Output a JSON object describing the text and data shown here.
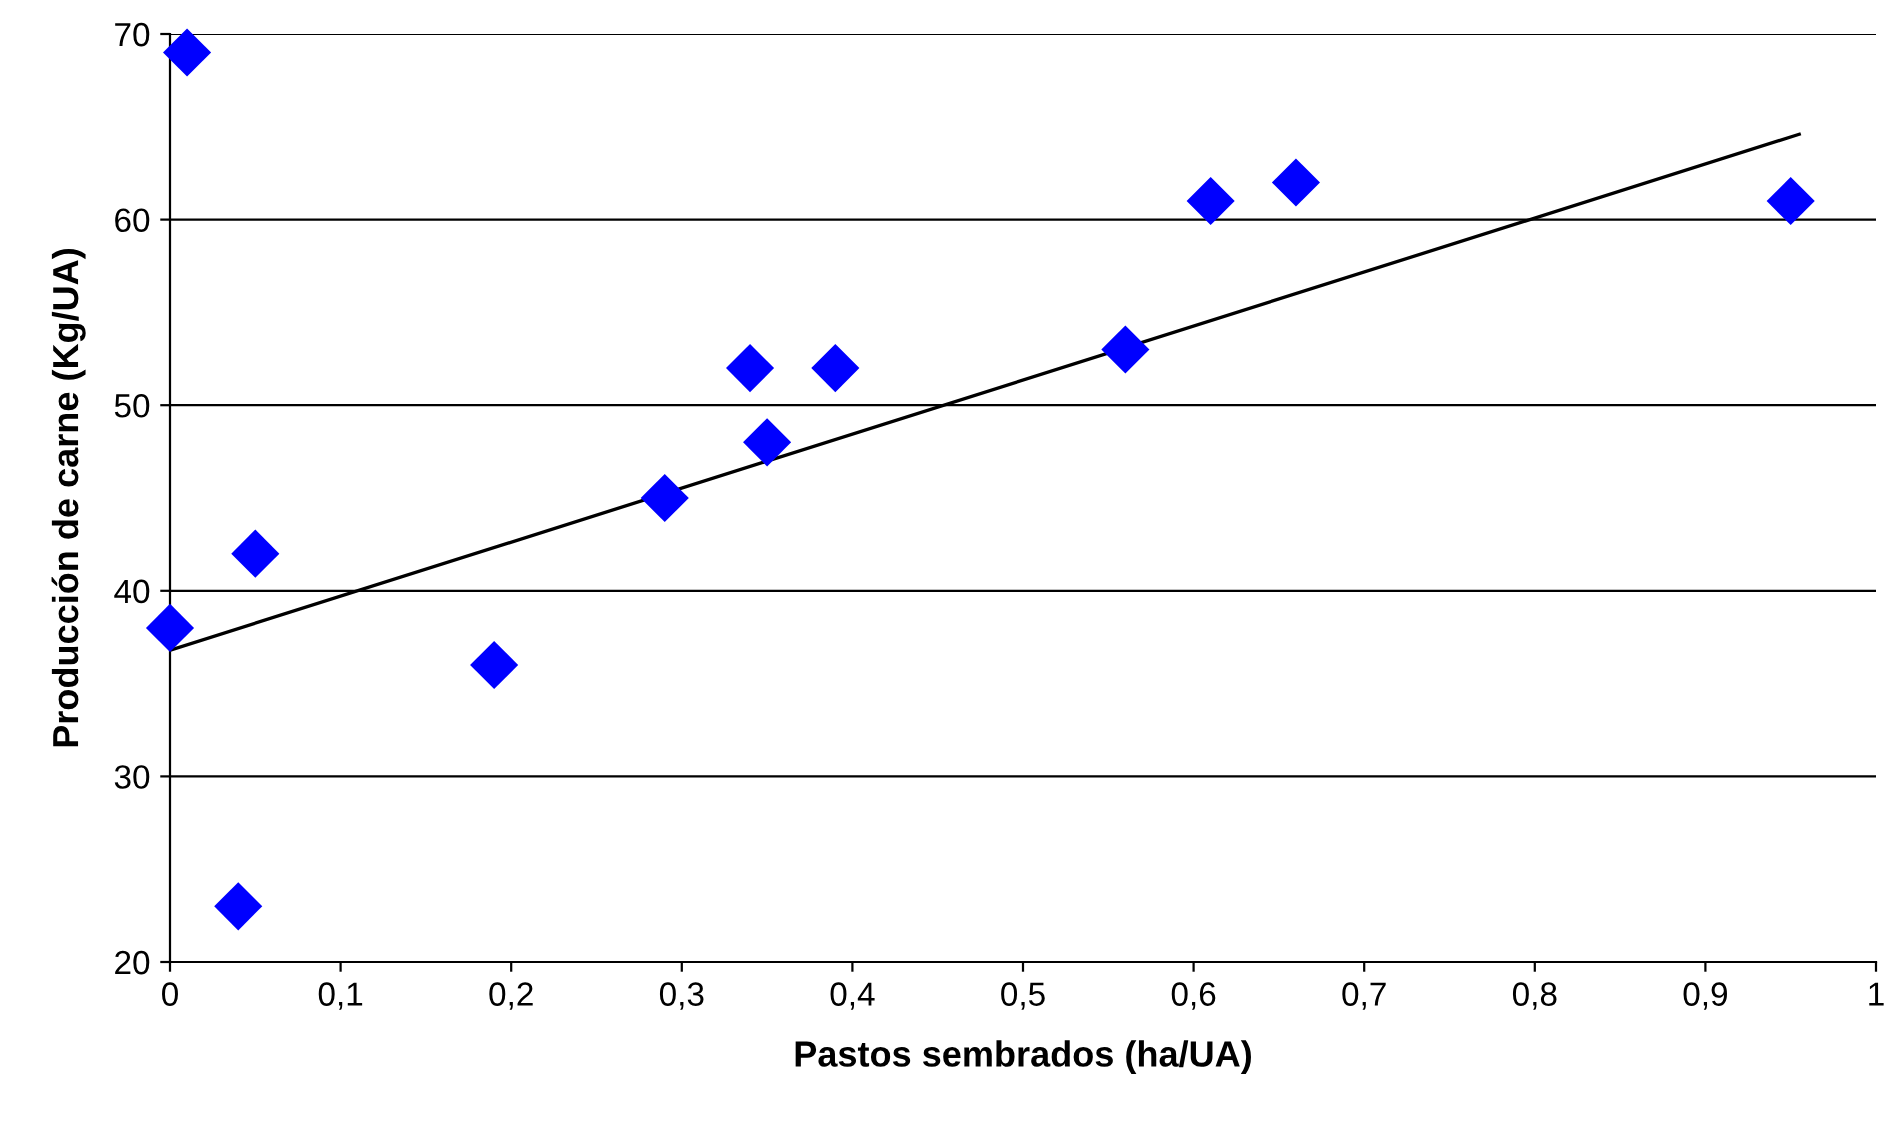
{
  "chart_data": {
    "type": "scatter",
    "xlabel": "Pastos sembrados (ha/UA)",
    "ylabel": "Producción de carne (Kg/UA)",
    "series": [
      {
        "color": "#0000ff",
        "marker": "diamond",
        "x": [
          0,
          0.01,
          0.04,
          0.05,
          0.19,
          0.29,
          0.34,
          0.35,
          0.39,
          0.56,
          0.61,
          0.66,
          0.95
        ],
        "values": [
          38,
          69,
          23,
          42,
          36,
          45,
          52,
          48,
          52,
          53,
          61,
          62,
          61
        ]
      },
      {
        "type": "line",
        "color": "#000000",
        "marker": "none",
        "x": [
          0,
          0.955
        ],
        "values": [
          36.8,
          64.6
        ]
      }
    ],
    "xlim": [
      0,
      1
    ],
    "ylim": [
      20,
      70
    ],
    "xticks": [
      0,
      {
        "value": 0.1,
        "label": "0,1"
      },
      {
        "value": 0.2,
        "label": "0,2"
      },
      {
        "value": 0.3,
        "label": "0,3"
      },
      {
        "value": 0.4,
        "label": "0,4"
      },
      {
        "value": 0.5,
        "label": "0,5"
      },
      {
        "value": 0.6,
        "label": "0,6"
      },
      {
        "value": 0.7,
        "label": "0,7"
      },
      {
        "value": 0.8,
        "label": "0,8"
      },
      {
        "value": 0.9,
        "label": "0,9"
      },
      1
    ],
    "yticks": [
      20,
      30,
      40,
      50,
      60,
      70
    ],
    "grid": "y"
  }
}
